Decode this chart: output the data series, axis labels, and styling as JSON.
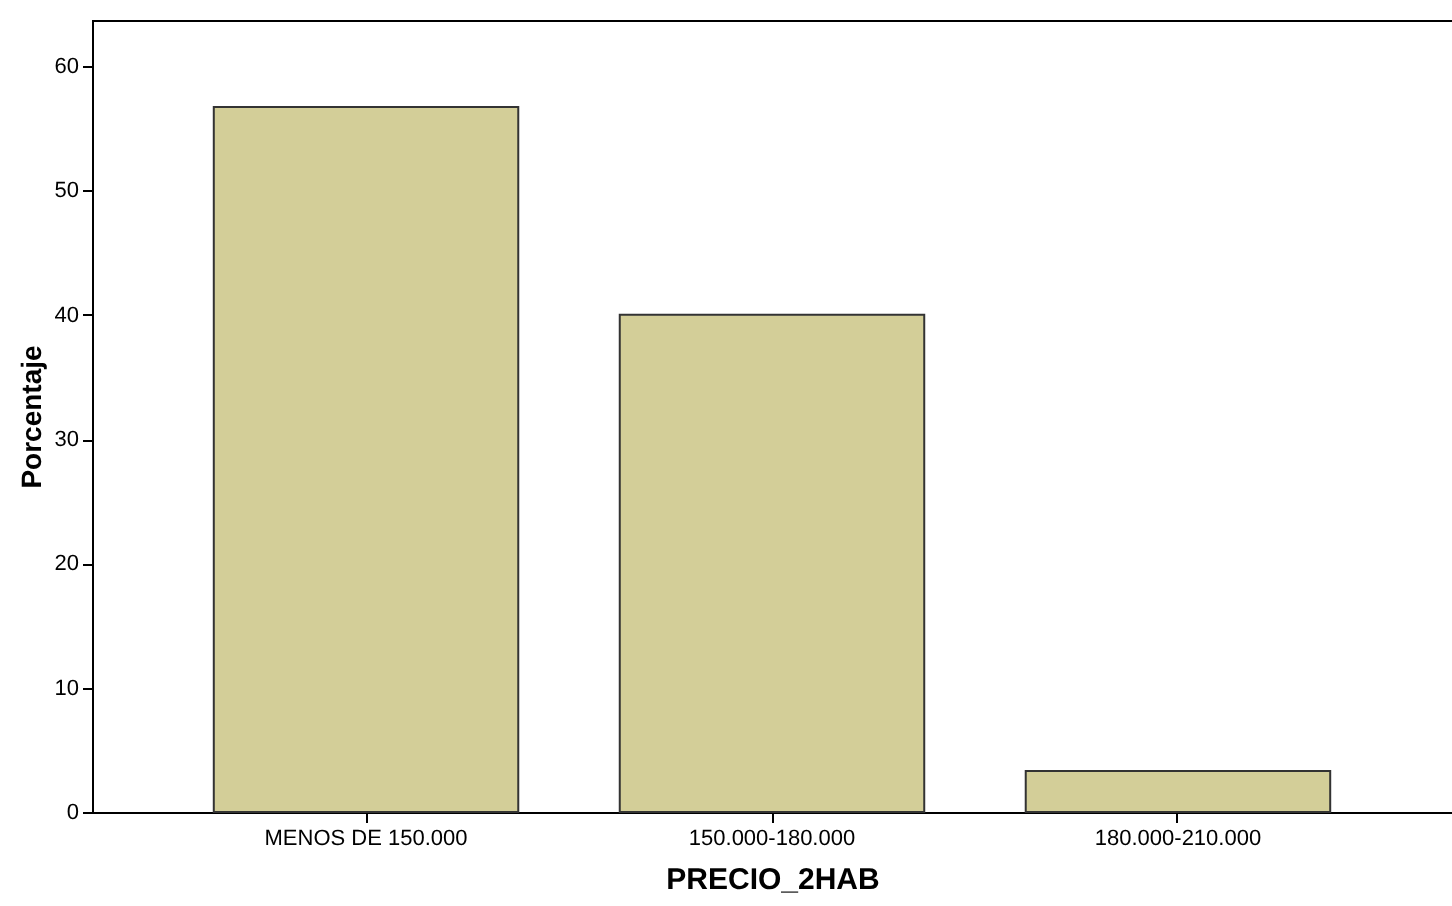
{
  "chart_data": {
    "type": "bar",
    "xlabel": "PRECIO_2HAB",
    "ylabel": "Porcentaje",
    "categories": [
      "MENOS DE 150.000",
      "150.000-180.000",
      "180.000-210.000"
    ],
    "values": [
      56.7,
      40.0,
      3.3
    ],
    "color": "#d3ce98",
    "ylim": [
      0,
      63.7
    ],
    "yticks": [
      0,
      10,
      20,
      30,
      40,
      50,
      60
    ]
  }
}
